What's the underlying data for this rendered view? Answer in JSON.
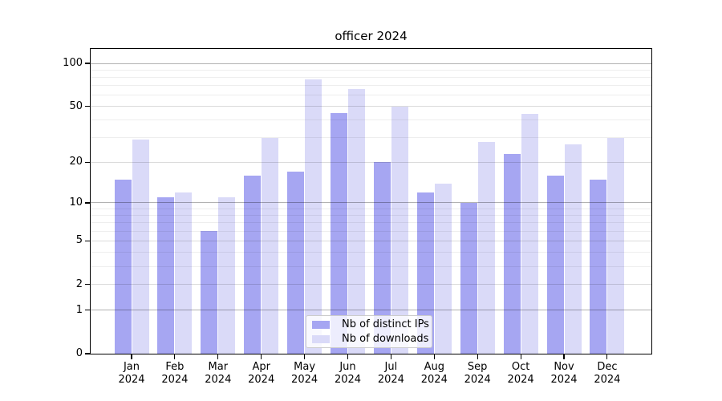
{
  "chart_data": {
    "type": "bar",
    "title": "officer 2024",
    "categories": [
      "Jan",
      "Feb",
      "Mar",
      "Apr",
      "May",
      "Jun",
      "Jul",
      "Aug",
      "Sep",
      "Oct",
      "Nov",
      "Dec"
    ],
    "category_year": "2024",
    "series": [
      {
        "name": "Nb of distinct IPs",
        "color": "#a6a6f2",
        "values": [
          15,
          11,
          6,
          16,
          17,
          45,
          20,
          12,
          10,
          23,
          16,
          15
        ]
      },
      {
        "name": "Nb of downloads",
        "color": "#dadaf8",
        "values": [
          29,
          12,
          11,
          30,
          77,
          66,
          50,
          14,
          28,
          44,
          27,
          30
        ]
      }
    ],
    "yscale": "log(1+x)",
    "ylim": [
      0,
      126
    ],
    "y_ticks": [
      100,
      50,
      20,
      10,
      5,
      2,
      1,
      0
    ],
    "y_major_gridlines": [
      1,
      10,
      100
    ],
    "y_mid_gridlines": [
      2,
      5,
      20,
      50
    ],
    "y_minor_gridlines": [
      3,
      4,
      6,
      7,
      8,
      9,
      30,
      40,
      60,
      70,
      80,
      90
    ],
    "grid": true,
    "legend_position": "lower center"
  }
}
